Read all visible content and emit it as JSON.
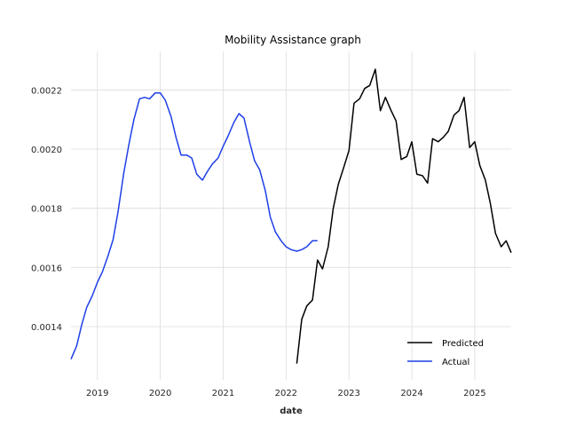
{
  "chart_data": {
    "type": "line",
    "title": "Mobility Assistance graph",
    "xlabel": "date",
    "ylabel": "",
    "xlim": [
      2018.58,
      2025.58
    ],
    "ylim": [
      0.00122,
      0.00233
    ],
    "x_ticks": [
      2019,
      2020,
      2021,
      2022,
      2023,
      2024,
      2025
    ],
    "x_tick_labels": [
      "2019",
      "2020",
      "2021",
      "2022",
      "2023",
      "2024",
      "2025"
    ],
    "y_ticks": [
      0.0014,
      0.0016,
      0.0018,
      0.002,
      0.0022
    ],
    "y_tick_labels": [
      "0.0014",
      "0.0016",
      "0.0018",
      "0.0020",
      "0.0022"
    ],
    "grid": true,
    "legend_position": "lower-right",
    "series": [
      {
        "name": "Predicted",
        "color": "#000000",
        "x": [
          2022.17,
          2022.25,
          2022.33,
          2022.42,
          2022.5,
          2022.58,
          2022.67,
          2022.75,
          2022.83,
          2022.92,
          2023.0,
          2023.08,
          2023.17,
          2023.25,
          2023.33,
          2023.42,
          2023.5,
          2023.58,
          2023.67,
          2023.75,
          2023.83,
          2023.92,
          2024.0,
          2024.08,
          2024.17,
          2024.25,
          2024.33,
          2024.42,
          2024.5,
          2024.58,
          2024.67,
          2024.75,
          2024.83,
          2024.92,
          2025.0,
          2025.08,
          2025.17,
          2025.25,
          2025.33,
          2025.42,
          2025.5,
          2025.58
        ],
        "y": [
          0.001275,
          0.001425,
          0.00147,
          0.00149,
          0.001625,
          0.001595,
          0.00167,
          0.0018,
          0.00188,
          0.00194,
          0.001995,
          0.002155,
          0.00217,
          0.002205,
          0.002215,
          0.00227,
          0.00213,
          0.002175,
          0.00213,
          0.002095,
          0.001965,
          0.001975,
          0.002025,
          0.001915,
          0.00191,
          0.001885,
          0.002035,
          0.002025,
          0.00204,
          0.00206,
          0.002115,
          0.00213,
          0.002175,
          0.002005,
          0.002025,
          0.001945,
          0.001895,
          0.001815,
          0.001715,
          0.00167,
          0.00169,
          0.00165
        ]
      },
      {
        "name": "Actual",
        "color": "#1f3fe8",
        "x": [
          2018.58,
          2018.67,
          2018.75,
          2018.83,
          2018.92,
          2019.0,
          2019.08,
          2019.17,
          2019.25,
          2019.33,
          2019.42,
          2019.5,
          2019.58,
          2019.67,
          2019.75,
          2019.83,
          2019.92,
          2020.0,
          2020.08,
          2020.17,
          2020.25,
          2020.33,
          2020.42,
          2020.5,
          2020.58,
          2020.67,
          2020.75,
          2020.83,
          2020.92,
          2021.0,
          2021.08,
          2021.17,
          2021.25,
          2021.33,
          2021.42,
          2021.5,
          2021.58,
          2021.67,
          2021.75,
          2021.83,
          2021.92,
          2022.0,
          2022.08,
          2022.17,
          2022.25,
          2022.33,
          2022.42,
          2022.5
        ],
        "y": [
          0.00129,
          0.001335,
          0.001405,
          0.001465,
          0.001505,
          0.00155,
          0.001585,
          0.00164,
          0.001695,
          0.00179,
          0.00192,
          0.002015,
          0.0021,
          0.00217,
          0.002175,
          0.00217,
          0.00219,
          0.00219,
          0.002165,
          0.00211,
          0.00204,
          0.00198,
          0.00198,
          0.00197,
          0.001915,
          0.001895,
          0.001925,
          0.00195,
          0.00197,
          0.00201,
          0.002045,
          0.00209,
          0.00212,
          0.002105,
          0.002025,
          0.00196,
          0.00193,
          0.00186,
          0.00177,
          0.00172,
          0.00169,
          0.00167,
          0.00166,
          0.001655,
          0.00166,
          0.00167,
          0.00169,
          0.00169
        ]
      }
    ]
  }
}
